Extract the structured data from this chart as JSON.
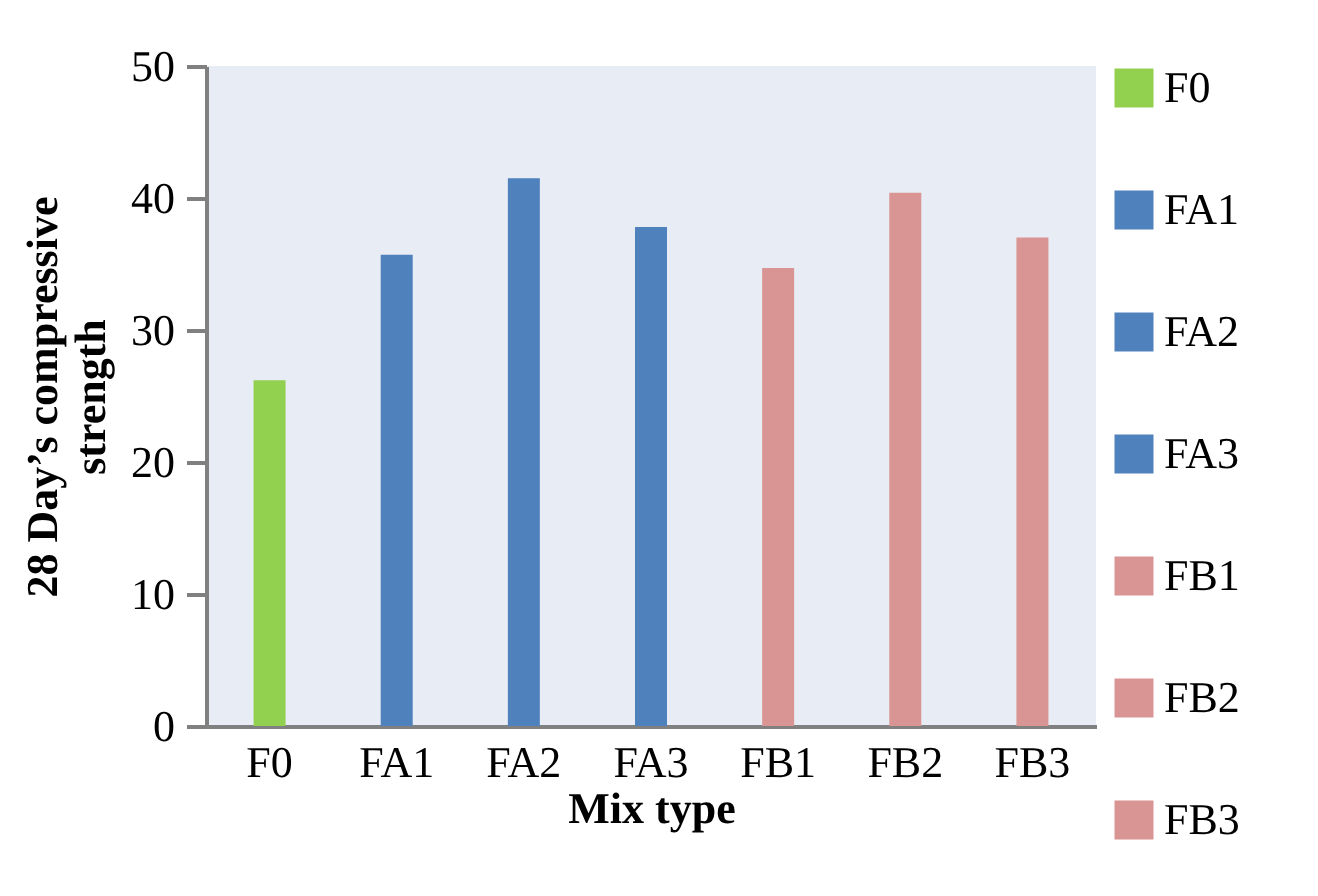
{
  "chart_data": {
    "type": "bar",
    "xlabel": "Mix type",
    "ylabel": "28 Day’s compressive\nstrength",
    "categories": [
      "F0",
      "FA1",
      "FA2",
      "FA3",
      "FB1",
      "FB2",
      "FB3"
    ],
    "series": [
      {
        "name": "F0",
        "color": "#92d050",
        "values": [
          26.2,
          null,
          null,
          null,
          null,
          null,
          null
        ]
      },
      {
        "name": "FA1",
        "color": "#4f81bd",
        "values": [
          null,
          35.7,
          null,
          null,
          null,
          null,
          null
        ]
      },
      {
        "name": "FA2",
        "color": "#4f81bd",
        "values": [
          null,
          null,
          41.5,
          null,
          null,
          null,
          null
        ]
      },
      {
        "name": "FA3",
        "color": "#4f81bd",
        "values": [
          null,
          null,
          null,
          37.8,
          null,
          null,
          null
        ]
      },
      {
        "name": "FB1",
        "color": "#d99594",
        "values": [
          null,
          null,
          null,
          null,
          34.7,
          null,
          null
        ]
      },
      {
        "name": "FB2",
        "color": "#d99594",
        "values": [
          null,
          null,
          null,
          null,
          null,
          40.4,
          null
        ]
      },
      {
        "name": "FB3",
        "color": "#d99594",
        "values": [
          null,
          null,
          null,
          null,
          null,
          null,
          37.0
        ]
      }
    ],
    "ylim": [
      0,
      50
    ],
    "yticks": [
      0,
      10,
      20,
      30,
      40,
      50
    ],
    "grid": false,
    "legend": "right"
  }
}
